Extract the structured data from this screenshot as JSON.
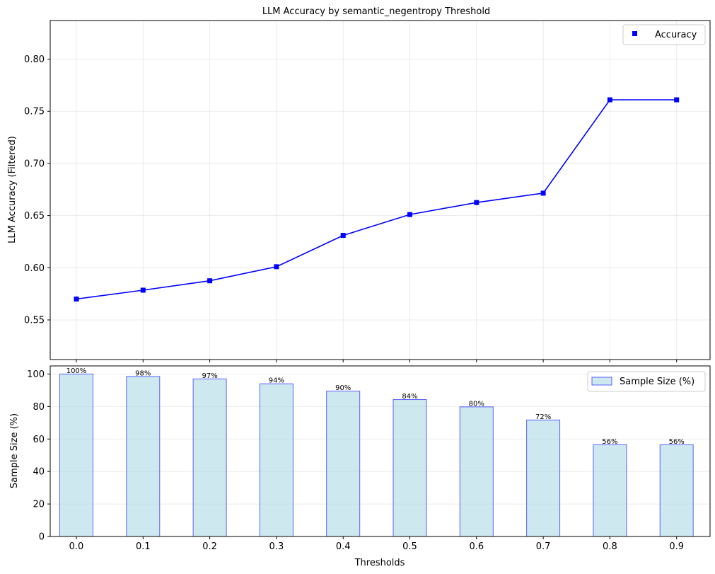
{
  "chart_data": [
    {
      "type": "line",
      "title": "LLM Accuracy by semantic_negentropy Threshold",
      "xlabel": "",
      "ylabel": "LLM Accuracy (Filtered)",
      "x": [
        0.0,
        0.1,
        0.2,
        0.3,
        0.4,
        0.5,
        0.6,
        0.7,
        0.8,
        0.9
      ],
      "series": [
        {
          "name": "Accuracy",
          "color": "#0000ff",
          "marker": "square",
          "values": [
            0.57,
            0.5785,
            0.5875,
            0.601,
            0.631,
            0.651,
            0.6625,
            0.6715,
            0.761,
            0.761
          ]
        }
      ],
      "ylim": [
        0.512,
        0.837
      ],
      "yticks": [
        "0.55",
        "0.60",
        "0.65",
        "0.70",
        "0.75",
        "0.80"
      ],
      "ytick_values": [
        0.55,
        0.6,
        0.65,
        0.7,
        0.75,
        0.8
      ],
      "grid": true,
      "legend": "top-right"
    },
    {
      "type": "bar",
      "title": "",
      "xlabel": "Thresholds",
      "ylabel": "Sample Size (%)",
      "categories": [
        "0.0",
        "0.1",
        "0.2",
        "0.3",
        "0.4",
        "0.5",
        "0.6",
        "0.7",
        "0.8",
        "0.9"
      ],
      "series": [
        {
          "name": "Sample Size (%)",
          "fill": "#add8e6",
          "edge": "#0000ff",
          "values": [
            100,
            98.5,
            97,
            94,
            89.5,
            84.3,
            79.8,
            71.7,
            56.5,
            56.5
          ],
          "labels": [
            "100%",
            "98%",
            "97%",
            "94%",
            "90%",
            "84%",
            "80%",
            "72%",
            "56%",
            "56%"
          ]
        }
      ],
      "ylim": [
        0,
        105
      ],
      "yticks": [
        "0",
        "20",
        "40",
        "60",
        "80",
        "100"
      ],
      "ytick_values": [
        0,
        20,
        40,
        60,
        80,
        100
      ],
      "grid": true,
      "legend": "top-right"
    }
  ]
}
